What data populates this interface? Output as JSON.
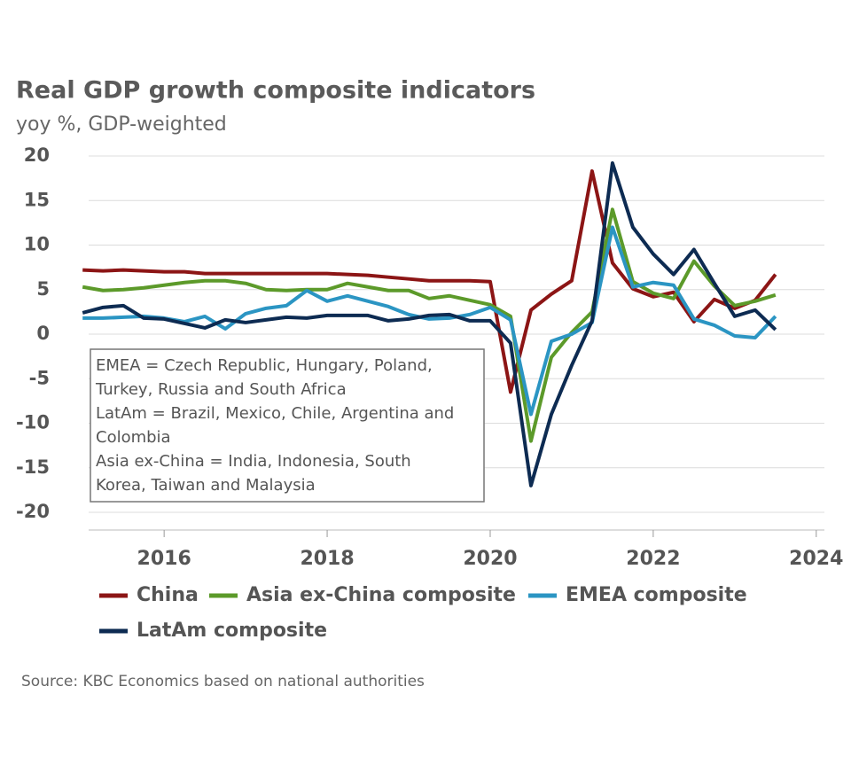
{
  "chart_data": {
    "type": "line",
    "title": "Real GDP growth composite indicators",
    "subtitle": "yoy %, GDP-weighted",
    "source": "Source: KBC Economics based on national authorities",
    "annotation": [
      "EMEA = Czech Republic, Hungary, Poland,",
      "Turkey, Russia and South Africa",
      "LatAm = Brazil, Mexico, Chile, Argentina and",
      "Colombia",
      "Asia ex-China = India, Indonesia, South",
      "Korea, Taiwan and Malaysia"
    ],
    "x": [
      2015,
      2015.25,
      2015.5,
      2015.75,
      2016,
      2016.25,
      2016.5,
      2016.75,
      2017,
      2017.25,
      2017.5,
      2017.75,
      2018,
      2018.25,
      2018.5,
      2018.75,
      2019,
      2019.25,
      2019.5,
      2019.75,
      2020,
      2020.25,
      2020.5,
      2020.75,
      2021,
      2021.25,
      2021.5,
      2021.75,
      2022,
      2022.25,
      2022.5,
      2022.75,
      2023,
      2023.25,
      2023.5
    ],
    "xlim": [
      2014.9,
      2024.1
    ],
    "xticks": [
      2016,
      2018,
      2020,
      2022,
      2024
    ],
    "ylim": [
      -20,
      20
    ],
    "yticks": [
      20,
      15,
      10,
      5,
      0,
      -5,
      -10,
      -15,
      -20
    ],
    "grid": true,
    "series": [
      {
        "name": "China",
        "color": "#8c1515",
        "values": [
          7.2,
          7.1,
          7.2,
          7.1,
          7.0,
          7.0,
          6.8,
          6.8,
          6.8,
          6.8,
          6.8,
          6.8,
          6.8,
          6.7,
          6.6,
          6.4,
          6.2,
          6.0,
          6.0,
          6.0,
          5.9,
          -6.5,
          2.7,
          4.5,
          6.0,
          18.3,
          8.0,
          5.1,
          4.2,
          4.7,
          1.4,
          3.9,
          2.9,
          3.8,
          6.7
        ]
      },
      {
        "name": "Asia ex-China composite",
        "color": "#5c9a2a",
        "values": [
          5.3,
          4.9,
          5.0,
          5.2,
          5.5,
          5.8,
          6.0,
          6.0,
          5.7,
          5.0,
          4.9,
          5.0,
          5.0,
          5.7,
          5.3,
          4.9,
          4.9,
          4.0,
          4.3,
          3.8,
          3.3,
          2.0,
          -12.0,
          -2.6,
          0.2,
          2.5,
          14.0,
          5.9,
          4.6,
          4.0,
          8.2,
          5.4,
          3.2,
          3.7,
          4.4
        ]
      },
      {
        "name": "EMEA composite",
        "color": "#2b95c3",
        "values": [
          1.8,
          1.8,
          1.9,
          2.0,
          1.8,
          1.4,
          2.0,
          0.6,
          2.3,
          2.9,
          3.2,
          4.9,
          3.7,
          4.3,
          3.7,
          3.1,
          2.2,
          1.7,
          1.8,
          2.2,
          3.0,
          1.6,
          -9.0,
          -0.8,
          0.0,
          1.3,
          12.0,
          5.3,
          5.8,
          5.5,
          1.7,
          1.0,
          -0.2,
          -0.4,
          2.0
        ]
      },
      {
        "name": "LatAm composite",
        "color": "#0d2b52",
        "values": [
          2.4,
          3.0,
          3.2,
          1.8,
          1.7,
          1.2,
          0.7,
          1.6,
          1.3,
          1.6,
          1.9,
          1.8,
          2.1,
          2.1,
          2.1,
          1.5,
          1.7,
          2.1,
          2.2,
          1.5,
          1.5,
          -1.0,
          -17.0,
          -9.0,
          -3.5,
          1.5,
          19.2,
          12.0,
          9.0,
          6.7,
          9.5,
          5.7,
          2.0,
          2.7,
          0.5
        ]
      }
    ]
  }
}
